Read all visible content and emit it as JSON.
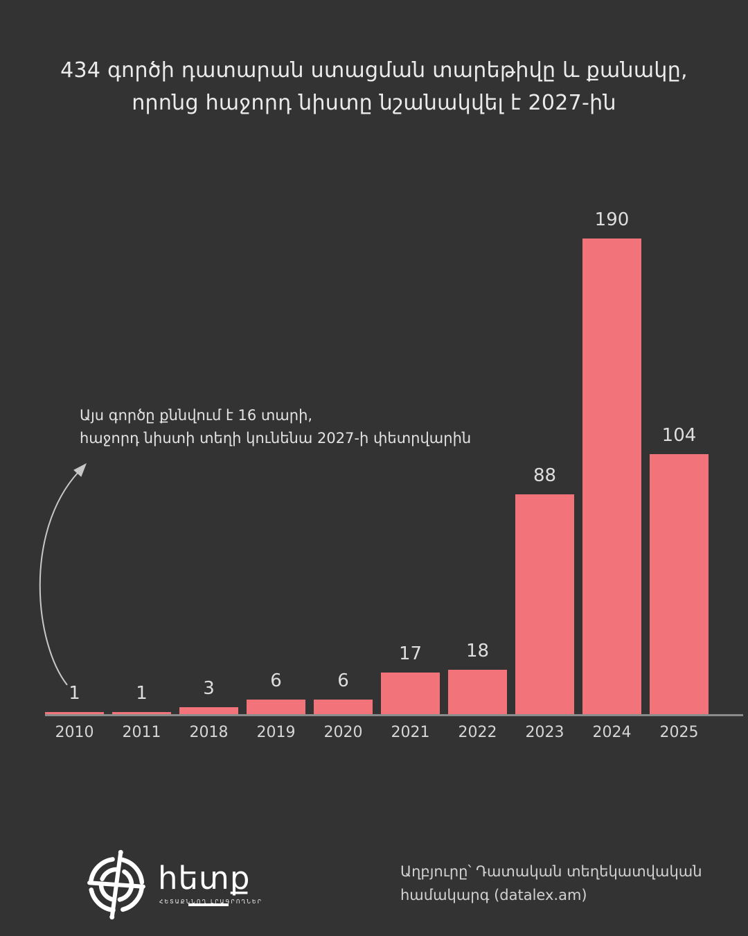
{
  "title": {
    "line1": "434 գործի դատարան ստացման տարեթիվը և քանակը,",
    "line2": "որոնց հաջորդ նիստը նշանակվել է 2027-ին"
  },
  "annotation": {
    "line1": "Այս գործը քննվում է 16 տարի,",
    "line2": "հաջորդ նիստի տեղի կունենա 2027-ի փետրվարին"
  },
  "chart_data": {
    "type": "bar",
    "categories": [
      "2010",
      "2011",
      "2018",
      "2019",
      "2020",
      "2021",
      "2022",
      "2023",
      "2024",
      "2025"
    ],
    "values": [
      1,
      1,
      3,
      6,
      6,
      17,
      18,
      88,
      190,
      104
    ],
    "title": "434 գործի դատարան ստացման տարեթիվը և քանակը, որոնց հաջորդ նիստը նշանակվել է 2027-ին",
    "xlabel": "",
    "ylabel": "",
    "ylim": [
      0,
      190
    ],
    "grid": false,
    "legend": false,
    "value_labels": true,
    "bar_color": "#f2737a"
  },
  "colors": {
    "background": "#333333",
    "bar": "#f2737a",
    "axis_line": "#8c8c8c",
    "arrow": "#c8c8c8",
    "text": "#ebebeb"
  },
  "footer": {
    "logo_text": "հետք",
    "logo_tagline": "ՀԵՏԱՔՆՆՈՂ ԼՐԱԳՐՈՂՆԵՐ",
    "source_line1": "Աղբյուրը՝ Դատական տեղեկատվական",
    "source_line2": "համակարգ (datalex.am)"
  }
}
